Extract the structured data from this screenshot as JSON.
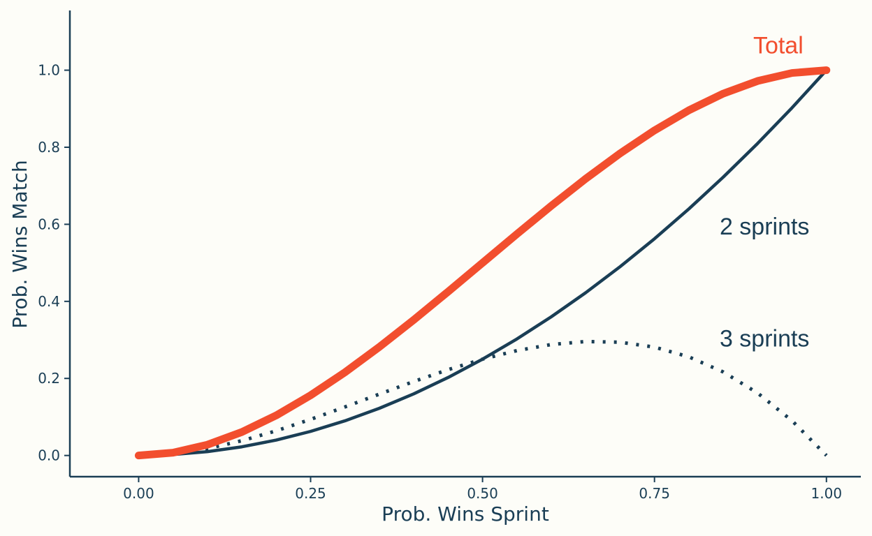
{
  "chart_data": {
    "type": "line",
    "title": "",
    "xlabel": "Prob. Wins Sprint",
    "ylabel": "Prob. Wins Match",
    "xlim": [
      -0.1,
      1.05
    ],
    "ylim": [
      -0.055,
      1.155
    ],
    "x_ticks": [
      0.0,
      0.25,
      0.5,
      0.75,
      1.0
    ],
    "x_tick_labels": [
      "0.00",
      "0.25",
      "0.50",
      "0.75",
      "1.00"
    ],
    "y_ticks": [
      0.0,
      0.2,
      0.4,
      0.6,
      0.8,
      1.0
    ],
    "y_tick_labels": [
      "0.0",
      "0.2",
      "0.4",
      "0.6",
      "0.8",
      "1.0"
    ],
    "grid": false,
    "x": [
      0.0,
      0.05,
      0.1,
      0.15,
      0.2,
      0.25,
      0.3,
      0.35,
      0.4,
      0.45,
      0.5,
      0.55,
      0.6,
      0.65,
      0.7,
      0.75,
      0.8,
      0.85,
      0.9,
      0.95,
      1.0
    ],
    "series": [
      {
        "name": "2 sprints",
        "style": "solid",
        "color": "#1a3e55",
        "values": [
          0.0,
          0.0025,
          0.01,
          0.0225,
          0.04,
          0.0625,
          0.09,
          0.1225,
          0.16,
          0.2025,
          0.25,
          0.3025,
          0.36,
          0.4225,
          0.49,
          0.5625,
          0.64,
          0.7225,
          0.81,
          0.9025,
          1.0
        ]
      },
      {
        "name": "3 sprints",
        "style": "dotted",
        "color": "#1a3e55",
        "values": [
          0.0,
          0.00475,
          0.018,
          0.03825,
          0.064,
          0.09375,
          0.126,
          0.15925,
          0.192,
          0.22275,
          0.25,
          0.27225,
          0.288,
          0.29575,
          0.294,
          0.28125,
          0.256,
          0.21675,
          0.162,
          0.09025,
          0.0
        ]
      },
      {
        "name": "Total",
        "style": "solid-thick",
        "color": "#f24e2e",
        "values": [
          0.0,
          0.00725,
          0.028,
          0.06075,
          0.104,
          0.15625,
          0.216,
          0.28175,
          0.352,
          0.42525,
          0.5,
          0.57475,
          0.648,
          0.71825,
          0.784,
          0.84375,
          0.896,
          0.93925,
          0.972,
          0.99275,
          1.0
        ]
      }
    ],
    "annotations": [
      {
        "text": "Total",
        "x": 0.93,
        "y": 1.065,
        "color": "#f24e2e"
      },
      {
        "text": "2 sprints",
        "x": 0.91,
        "y": 0.595,
        "color": "#1a3e55"
      },
      {
        "text": "3 sprints",
        "x": 0.91,
        "y": 0.305,
        "color": "#1a3e55"
      }
    ],
    "axis_color": "#1a3e55",
    "background": "#fdfdf8"
  }
}
